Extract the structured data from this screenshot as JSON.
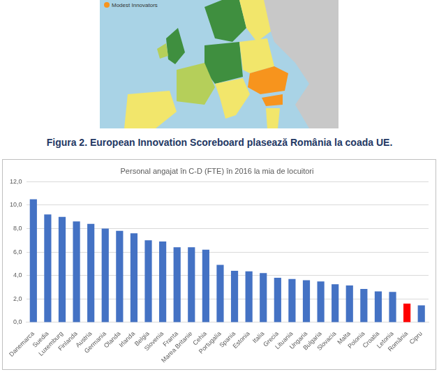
{
  "figure": {
    "map_legend": "Modest Innovators",
    "caption": "Figura 2. European Innovation Scoreboard plasează România la coada UE."
  },
  "chart_data": {
    "type": "bar",
    "title": "Personal angajat în C-D (FTE) în 2016 la mia de locuitori",
    "categories": [
      "Danemarca",
      "Suedia",
      "Luxemburg",
      "Finlanda",
      "Austria",
      "Germania",
      "Olanda",
      "Irlanda",
      "Belgia",
      "Slovenia",
      "Franta",
      "Marea Britanie",
      "Cehia",
      "Portugalia",
      "Spania",
      "Estonia",
      "Italia",
      "Grecia",
      "Lituania",
      "Ungaria",
      "Bulgaria",
      "Slovacia",
      "Malta",
      "Polonia",
      "Croatia",
      "Letonia",
      "România",
      "Cipru"
    ],
    "values": [
      10.5,
      9.2,
      9.0,
      8.6,
      8.4,
      8.0,
      7.8,
      7.6,
      7.0,
      6.9,
      6.4,
      6.4,
      6.2,
      4.9,
      4.4,
      4.35,
      4.2,
      3.8,
      3.7,
      3.6,
      3.5,
      3.25,
      3.15,
      2.85,
      2.65,
      2.6,
      1.6,
      1.45
    ],
    "colors": [
      "#4472c4",
      "#4472c4",
      "#4472c4",
      "#4472c4",
      "#4472c4",
      "#4472c4",
      "#4472c4",
      "#4472c4",
      "#4472c4",
      "#4472c4",
      "#4472c4",
      "#4472c4",
      "#4472c4",
      "#4472c4",
      "#4472c4",
      "#4472c4",
      "#4472c4",
      "#4472c4",
      "#4472c4",
      "#4472c4",
      "#4472c4",
      "#4472c4",
      "#4472c4",
      "#4472c4",
      "#4472c4",
      "#4472c4",
      "#ff0000",
      "#4472c4"
    ],
    "ylim": [
      0,
      12
    ],
    "yticks": [
      {
        "value": 0,
        "label": "0,0"
      },
      {
        "value": 2,
        "label": "2,0"
      },
      {
        "value": 4,
        "label": "4,0"
      },
      {
        "value": 6,
        "label": "6,0"
      },
      {
        "value": 8,
        "label": "8,0"
      },
      {
        "value": 10,
        "label": "10,0"
      },
      {
        "value": 12,
        "label": "12,0"
      }
    ],
    "grid": true
  }
}
